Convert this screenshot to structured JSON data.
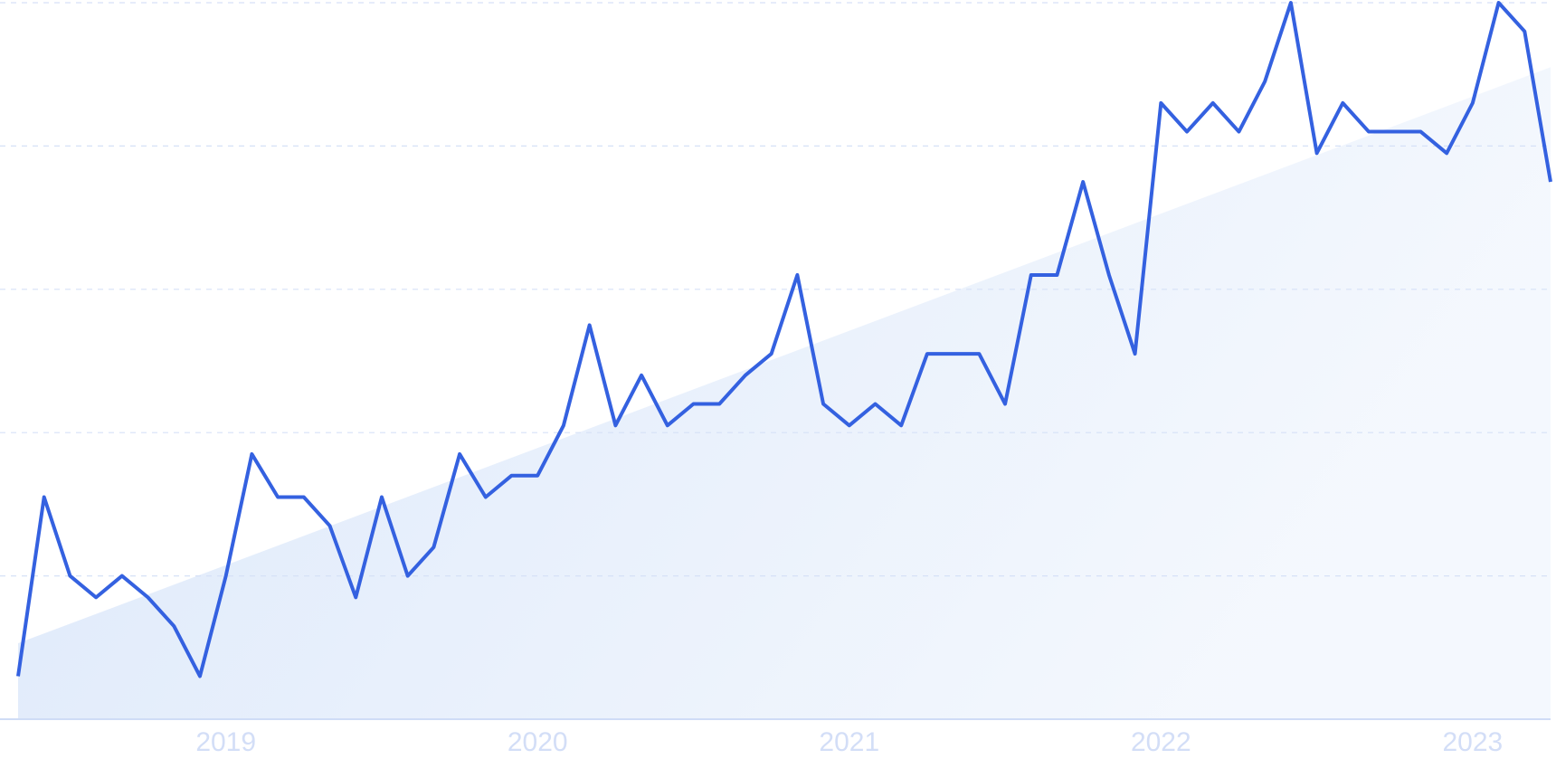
{
  "chart_data": {
    "type": "line",
    "categories": [
      null,
      null,
      null,
      null,
      null,
      null,
      null,
      null,
      "2019",
      null,
      null,
      null,
      null,
      null,
      null,
      null,
      null,
      null,
      null,
      null,
      "2020",
      null,
      null,
      null,
      null,
      null,
      null,
      null,
      null,
      null,
      null,
      null,
      "2021",
      null,
      null,
      null,
      null,
      null,
      null,
      null,
      null,
      null,
      null,
      null,
      "2022",
      null,
      null,
      null,
      null,
      null,
      null,
      null,
      null,
      null,
      null,
      null,
      "2023",
      null,
      null,
      null
    ],
    "values": [
      6,
      31,
      20,
      17,
      20,
      17,
      13,
      6,
      20,
      37,
      31,
      31,
      27,
      17,
      31,
      20,
      24,
      37,
      31,
      34,
      34,
      41,
      55,
      41,
      48,
      41,
      44,
      44,
      48,
      51,
      62,
      44,
      41,
      44,
      41,
      51,
      51,
      51,
      44,
      62,
      62,
      75,
      62,
      51,
      86,
      82,
      86,
      82,
      89,
      100,
      79,
      86,
      82,
      82,
      82,
      79,
      86,
      100,
      96,
      75
    ],
    "trend": [
      10.6,
      91
    ],
    "color": "#3461e0",
    "trend_color": "#dce8fa",
    "ylim": [
      0,
      100
    ],
    "yticks": [
      0,
      20,
      40,
      60,
      80,
      100
    ],
    "grid": true
  }
}
